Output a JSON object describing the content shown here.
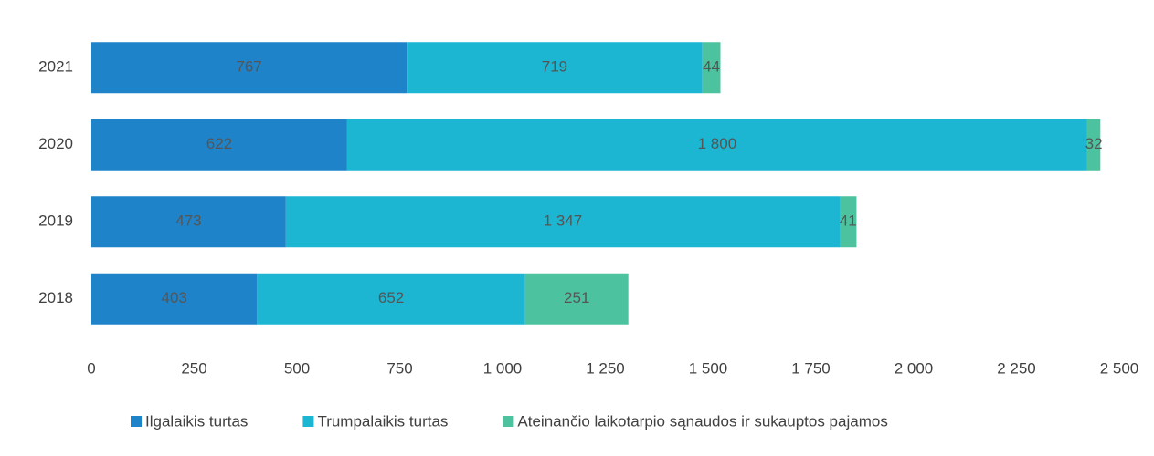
{
  "chart_data": {
    "type": "stacked_bar_horizontal",
    "categories": [
      "2021",
      "2020",
      "2019",
      "2018"
    ],
    "series": [
      {
        "name": "Ilgalaikis turtas",
        "color": "#1f83c9",
        "values": [
          767,
          622,
          473,
          403
        ]
      },
      {
        "name": "Trumpalaikis turtas",
        "color": "#1cb6d2",
        "values": [
          719,
          1800,
          1347,
          652
        ],
        "value_labels": [
          "719",
          "1 800",
          "1 347",
          "652"
        ]
      },
      {
        "name": "Ateinančio laikotarpio sąnaudos ir sukauptos pajamos",
        "color": "#4cc39e",
        "values": [
          44,
          32,
          41,
          251
        ]
      }
    ],
    "xlim": [
      0,
      2500
    ],
    "xticks": [
      0,
      250,
      500,
      750,
      {
        "value": 1000,
        "label": "1 000"
      },
      {
        "value": 1250,
        "label": "1 250"
      },
      {
        "value": 1500,
        "label": "1 500"
      },
      {
        "value": 1750,
        "label": "1 750"
      },
      {
        "value": 2000,
        "label": "2 000"
      },
      {
        "value": 2250,
        "label": "2 250"
      },
      {
        "value": 2500,
        "label": "2 500"
      }
    ],
    "legend": "bottom",
    "grid": false
  }
}
